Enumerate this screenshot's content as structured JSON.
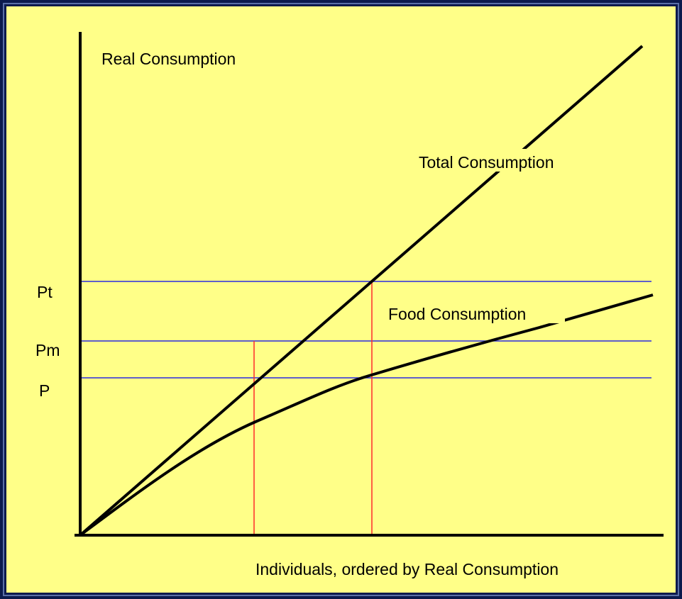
{
  "axis_labels": {
    "y": "Real Consumption",
    "x": "Individuals, ordered by Real Consumption"
  },
  "curves": [
    {
      "label": "Total Consumption"
    },
    {
      "label": "Food Consumption"
    }
  ],
  "levels": [
    {
      "label": "Pt"
    },
    {
      "label": "Pm"
    },
    {
      "label": "P"
    }
  ]
}
